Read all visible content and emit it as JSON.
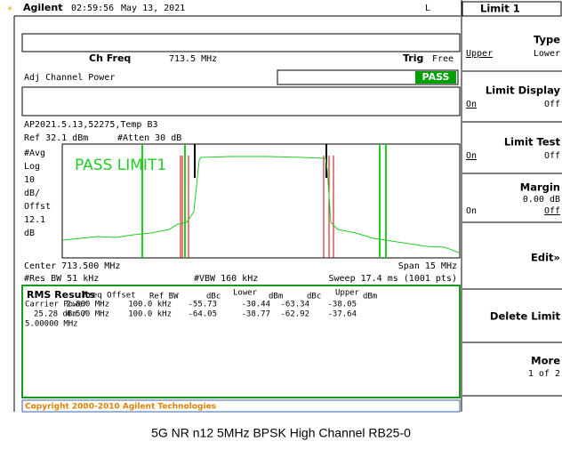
{
  "header": {
    "brand": "Agilent",
    "time": "02:59:56",
    "date": "May 13, 2021",
    "mode": "L"
  },
  "softkeys": {
    "title": "Limit 1",
    "type": {
      "label": "Type",
      "left": "Upper",
      "right": "Lower"
    },
    "display": {
      "label": "Limit Display",
      "left": "On",
      "right": "Off"
    },
    "test": {
      "label": "Limit Test",
      "left": "On",
      "right": "Off"
    },
    "margin": {
      "label": "Margin",
      "value": "0.00 dB",
      "left": "On",
      "right": "Off"
    },
    "edit": "Edit»",
    "delete": "Delete Limit",
    "more": {
      "label": "More",
      "page": "1 of 2"
    }
  },
  "measurement": {
    "ch_freq_label": "Ch Freq",
    "ch_freq": "713.5 MHz",
    "trig_label": "Trig",
    "trig": "Free",
    "name": "Adj Channel Power",
    "status": "PASS",
    "file": "AP2021.5.13,52275,Temp B3",
    "ref": "Ref 32.1 dBm",
    "atten": "#Atten 30 dB",
    "scale": [
      "#Avg",
      "Log",
      "10",
      "dB/",
      "Offst",
      "12.1",
      "dB"
    ],
    "limit_msg": "PASS LIMIT1",
    "center": "Center 713.500 MHz",
    "span": "Span 15 MHz",
    "rbw": "#Res BW 51 kHz",
    "vbw": "#VBW 160 kHz",
    "sweep": "Sweep 17.4 ms (1001 pts)"
  },
  "results": {
    "title": "RMS Results",
    "headers": [
      "Freq Offset",
      "Ref BW",
      "dBc",
      "Lower",
      "dBm",
      "dBc",
      "Upper",
      "dBm"
    ],
    "carrier": [
      "Carrier Power",
      "25.28 dBm /",
      "5.00000 MHz"
    ],
    "rows": [
      [
        "2.800 MHz",
        "100.0 kHz",
        "-55.73",
        "-30.44",
        "-63.34",
        "-38.05"
      ],
      [
        "4.500 MHz",
        "100.0 kHz",
        "-64.05",
        "-38.77",
        "-62.92",
        "-37.64"
      ]
    ]
  },
  "footer": "Copyright 2000-2010 Agilent Technologies",
  "caption": "5G NR n12 5MHz BPSK High Channel RB25-0"
}
